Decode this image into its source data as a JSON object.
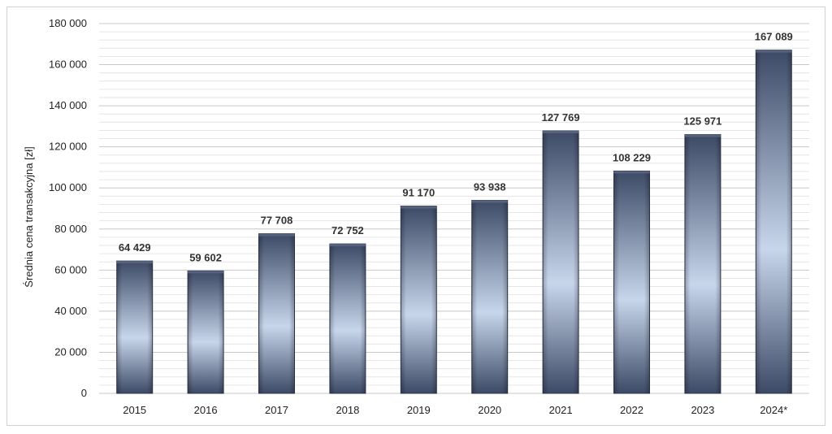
{
  "chart_data": {
    "type": "bar",
    "ylabel": "Średnia cena transakcyjna [zł]",
    "categories": [
      "2015",
      "2016",
      "2017",
      "2018",
      "2019",
      "2020",
      "2021",
      "2022",
      "2023",
      "2024*"
    ],
    "values": [
      64429,
      59602,
      77708,
      72752,
      91170,
      93938,
      127769,
      108229,
      125971,
      167089
    ],
    "value_labels": [
      "64 429",
      "59 602",
      "77 708",
      "72 752",
      "91 170",
      "93 938",
      "127 769",
      "108 229",
      "125 971",
      "167 089"
    ],
    "ylim": [
      0,
      180000
    ],
    "yticks": [
      0,
      20000,
      40000,
      60000,
      80000,
      100000,
      120000,
      140000,
      160000,
      180000
    ],
    "ytick_labels": [
      "0",
      "20 000",
      "40 000",
      "60 000",
      "80 000",
      "100 000",
      "120 000",
      "140 000",
      "160 000",
      "180 000"
    ],
    "grid": true,
    "colors": {
      "bar_dark": "#3d4a66",
      "bar_light": "#c8d6ec",
      "major_grid": "#c8c8c8",
      "minor_grid": "#e6e6e6"
    }
  }
}
